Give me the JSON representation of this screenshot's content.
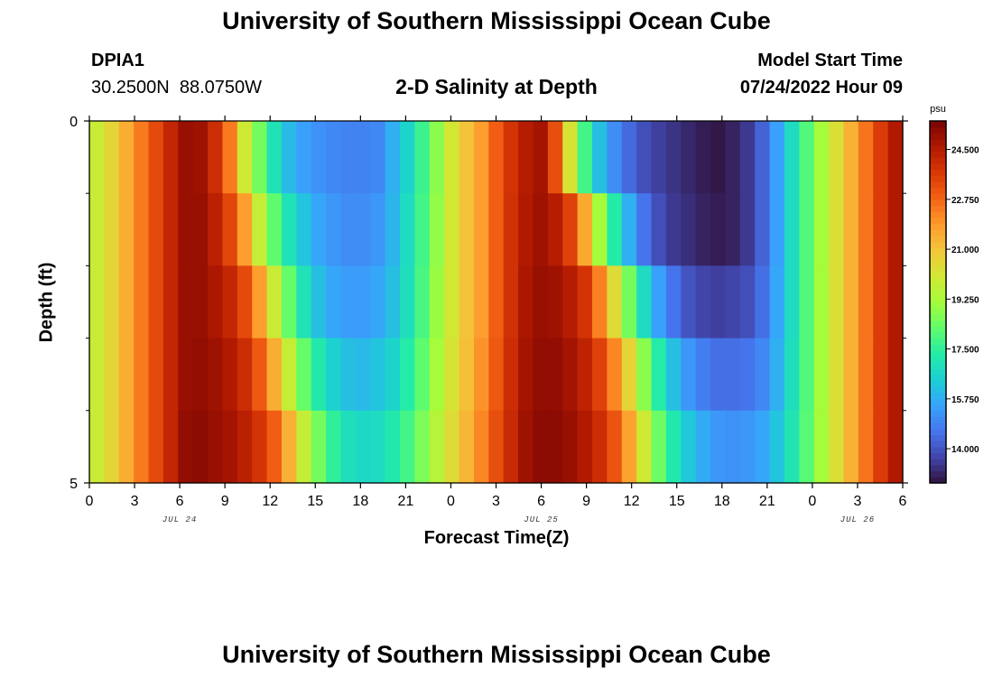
{
  "header": {
    "title": "University of Southern Mississippi Ocean Cube",
    "station_id": "DPIA1",
    "station_coords": "30.2500N  88.0750W",
    "model_start_label": "Model Start Time",
    "model_start_value": "07/24/2022 Hour 09"
  },
  "footer": {
    "title_repeat": "University of Southern Mississippi Ocean Cube"
  },
  "chart_data": {
    "type": "heatmap",
    "title": "2-D Salinity at Depth",
    "xlabel": "Forecast Time(Z)",
    "ylabel": "Depth (ft)",
    "ylim": [
      0,
      5
    ],
    "y_tick_labels": [
      "0",
      "5"
    ],
    "y_minor_ticks": [
      1,
      2,
      3,
      4
    ],
    "x_tick_labels": [
      "0",
      "3",
      "6",
      "9",
      "12",
      "15",
      "18",
      "21",
      "0",
      "3",
      "6",
      "9",
      "12",
      "15",
      "18",
      "21",
      "0",
      "3",
      "6"
    ],
    "date_labels": [
      {
        "text": "JUL 24",
        "at_hour": 6
      },
      {
        "text": "JUL 25",
        "at_hour": 30
      },
      {
        "text": "JUL 26",
        "at_hour": 51
      }
    ],
    "x_range_hours": [
      0,
      54
    ],
    "colorbar": {
      "unit": "psu",
      "min": 12.8,
      "max": 25.5,
      "tick_labels": [
        "24.500",
        "22.750",
        "21.000",
        "19.250",
        "17.500",
        "15.750",
        "14.000"
      ],
      "tick_values": [
        24.5,
        22.75,
        21.0,
        19.25,
        17.5,
        15.75,
        14.0
      ],
      "colors": [
        "#30123b",
        "#4145ab",
        "#4675ed",
        "#39a2fc",
        "#1bcfd4",
        "#24eca6",
        "#61fc6c",
        "#a4fc3b",
        "#d1e834",
        "#f3c63a",
        "#fe9b2d",
        "#f36315",
        "#d93806",
        "#b11901",
        "#7a0402"
      ]
    },
    "depth_levels": [
      0,
      1,
      2,
      3,
      4
    ],
    "time_hours": [
      0,
      1,
      2,
      3,
      4,
      5,
      6,
      7,
      8,
      9,
      10,
      11,
      12,
      13,
      14,
      15,
      16,
      17,
      18,
      19,
      20,
      21,
      22,
      23,
      24,
      25,
      26,
      27,
      28,
      29,
      30,
      31,
      32,
      33,
      34,
      35,
      36,
      37,
      38,
      39,
      40,
      41,
      42,
      43,
      44,
      45,
      46,
      47,
      48,
      49,
      50,
      51,
      52,
      53,
      54
    ],
    "values": [
      [
        19.9,
        20.6,
        21.5,
        22.4,
        23.3,
        24.2,
        25.0,
        24.9,
        24.0,
        22.4,
        20.0,
        18.5,
        17.0,
        16.0,
        15.5,
        15.2,
        15.0,
        14.9,
        14.9,
        15.0,
        15.8,
        16.6,
        17.7,
        18.8,
        20.1,
        21.0,
        21.8,
        22.9,
        23.8,
        24.5,
        24.8,
        23.2,
        20.2,
        17.8,
        16.1,
        15.1,
        14.4,
        13.9,
        13.6,
        13.4,
        13.2,
        13.0,
        12.9,
        13.1,
        13.5,
        14.3,
        15.5,
        16.8,
        18.0,
        19.2,
        20.3,
        21.4,
        22.5,
        23.6,
        24.6
      ],
      [
        19.9,
        20.6,
        21.5,
        22.4,
        23.3,
        24.2,
        25.0,
        25.0,
        24.4,
        23.4,
        21.8,
        19.8,
        18.2,
        17.0,
        16.2,
        15.6,
        15.3,
        15.1,
        15.1,
        15.3,
        15.9,
        16.8,
        17.8,
        18.9,
        20.1,
        21.0,
        21.8,
        22.9,
        23.9,
        24.6,
        24.9,
        24.5,
        23.5,
        21.6,
        19.2,
        17.3,
        15.8,
        14.6,
        13.9,
        13.5,
        13.3,
        13.1,
        13.0,
        13.1,
        13.5,
        14.3,
        15.5,
        16.8,
        18.0,
        19.2,
        20.3,
        21.4,
        22.5,
        23.6,
        24.6
      ],
      [
        19.9,
        20.6,
        21.5,
        22.4,
        23.3,
        24.2,
        25.0,
        25.0,
        24.7,
        24.2,
        23.3,
        21.8,
        19.9,
        18.3,
        17.0,
        16.1,
        15.6,
        15.4,
        15.4,
        15.6,
        16.1,
        16.9,
        17.9,
        19.0,
        20.1,
        21.0,
        21.8,
        22.9,
        23.9,
        24.7,
        25.0,
        24.9,
        24.5,
        23.8,
        22.3,
        20.4,
        18.5,
        16.8,
        15.5,
        14.6,
        14.0,
        13.7,
        13.6,
        13.7,
        13.9,
        14.5,
        15.6,
        16.8,
        18.0,
        19.2,
        20.3,
        21.4,
        22.5,
        23.6,
        24.6
      ],
      [
        19.9,
        20.6,
        21.5,
        22.4,
        23.3,
        24.2,
        25.0,
        25.1,
        24.9,
        24.6,
        24.0,
        23.0,
        21.5,
        19.8,
        18.3,
        17.2,
        16.5,
        16.1,
        16.0,
        16.2,
        16.6,
        17.3,
        18.2,
        19.2,
        20.2,
        21.1,
        22.0,
        23.0,
        24.0,
        24.8,
        25.1,
        25.1,
        24.8,
        24.3,
        23.5,
        22.2,
        20.6,
        18.8,
        17.3,
        16.1,
        15.3,
        14.8,
        14.5,
        14.5,
        14.6,
        15.0,
        15.8,
        16.9,
        18.0,
        19.2,
        20.3,
        21.4,
        22.5,
        23.6,
        24.6
      ],
      [
        19.9,
        20.6,
        21.5,
        22.4,
        23.3,
        24.2,
        25.1,
        25.2,
        25.0,
        24.8,
        24.4,
        23.8,
        22.9,
        21.4,
        19.8,
        18.5,
        17.5,
        16.9,
        16.7,
        16.8,
        17.2,
        17.8,
        18.6,
        19.5,
        20.4,
        21.3,
        22.2,
        23.2,
        24.1,
        24.9,
        25.2,
        25.2,
        25.0,
        24.6,
        24.0,
        23.1,
        21.7,
        20.0,
        18.4,
        17.2,
        16.3,
        15.7,
        15.3,
        15.2,
        15.3,
        15.6,
        16.2,
        17.1,
        18.1,
        19.2,
        20.3,
        21.4,
        22.5,
        23.6,
        24.6
      ]
    ]
  }
}
